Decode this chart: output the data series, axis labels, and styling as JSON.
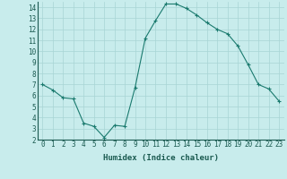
{
  "x": [
    0,
    1,
    2,
    3,
    4,
    5,
    6,
    7,
    8,
    9,
    10,
    11,
    12,
    13,
    14,
    15,
    16,
    17,
    18,
    19,
    20,
    21,
    22,
    23
  ],
  "y": [
    7.0,
    6.5,
    5.8,
    5.7,
    3.5,
    3.2,
    2.2,
    3.3,
    3.2,
    6.7,
    11.2,
    12.8,
    14.3,
    14.3,
    13.9,
    13.3,
    12.6,
    12.0,
    11.6,
    10.5,
    8.8,
    7.0,
    6.6,
    5.5
  ],
  "line_color": "#1a7a6e",
  "marker": "+",
  "bg_color": "#c8ecec",
  "grid_color": "#a8d4d4",
  "xlabel": "Humidex (Indice chaleur)",
  "xlabel_color": "#1a5a50",
  "ylim": [
    2,
    14.5
  ],
  "yticks": [
    2,
    3,
    4,
    5,
    6,
    7,
    8,
    9,
    10,
    11,
    12,
    13,
    14
  ],
  "xticks": [
    0,
    1,
    2,
    3,
    4,
    5,
    6,
    7,
    8,
    9,
    10,
    11,
    12,
    13,
    14,
    15,
    16,
    17,
    18,
    19,
    20,
    21,
    22,
    23
  ],
  "label_fontsize": 6.5,
  "tick_fontsize": 5.5
}
